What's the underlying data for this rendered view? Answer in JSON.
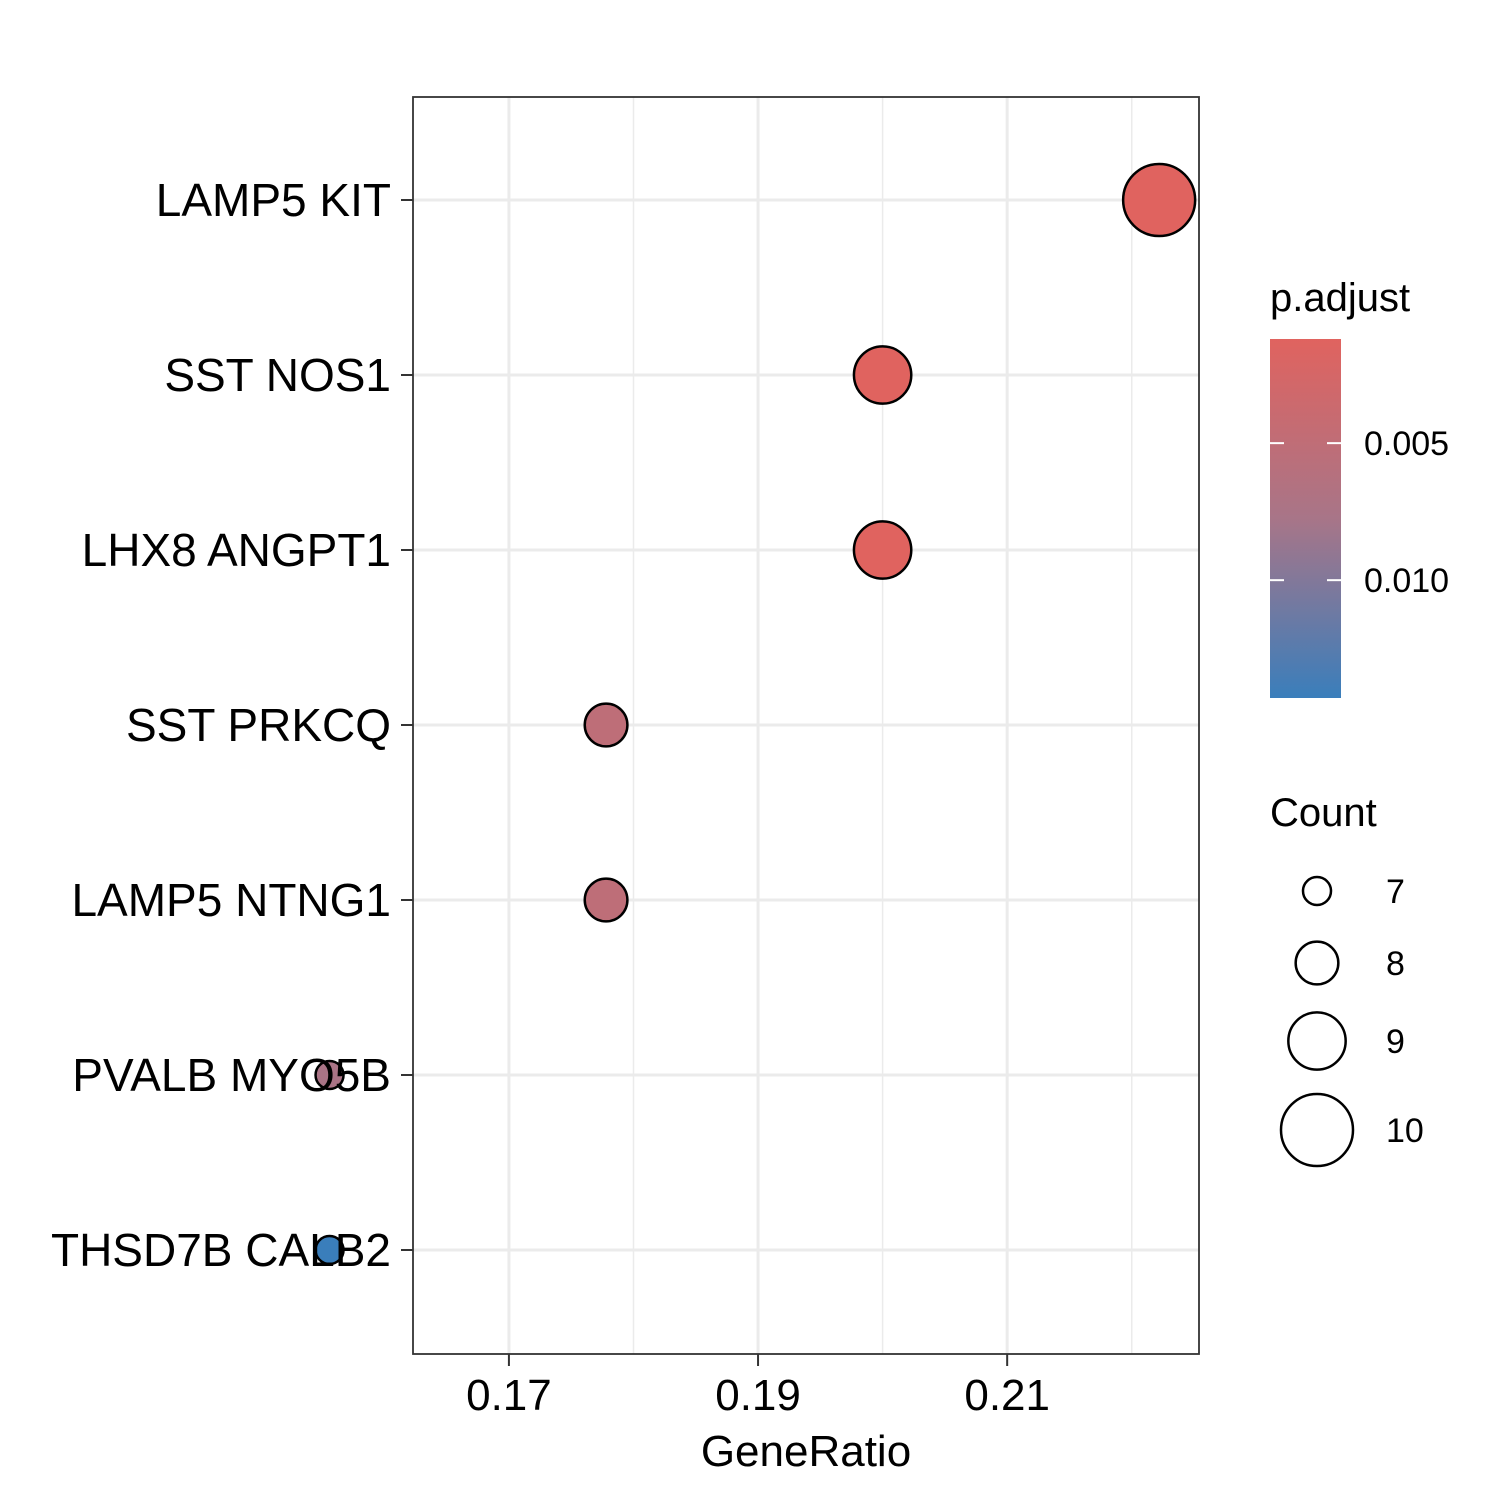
{
  "chart_data": {
    "type": "scatter",
    "xlabel": "GeneRatio",
    "x_ticks": [
      0.17,
      0.19,
      0.21
    ],
    "x_tick_labels": [
      "0.17",
      "0.19",
      "0.21"
    ],
    "xlim": [
      0.1623,
      0.2254
    ],
    "categories": [
      "THSD7B CALB2",
      "PVALB MYO5B",
      "LAMP5 NTNG1",
      "SST PRKCQ",
      "LHX8 ANGPT1",
      "SST NOS1",
      "LAMP5 KIT"
    ],
    "points": [
      {
        "label": "LAMP5 KIT",
        "gene_ratio": 0.2222,
        "count": 10,
        "p_adjust": 0.0012
      },
      {
        "label": "SST NOS1",
        "gene_ratio": 0.2,
        "count": 9,
        "p_adjust": 0.0012
      },
      {
        "label": "LHX8 ANGPT1",
        "gene_ratio": 0.2,
        "count": 9,
        "p_adjust": 0.0012
      },
      {
        "label": "SST PRKCQ",
        "gene_ratio": 0.1778,
        "count": 8,
        "p_adjust": 0.0052
      },
      {
        "label": "LAMP5 NTNG1",
        "gene_ratio": 0.1778,
        "count": 8,
        "p_adjust": 0.0052
      },
      {
        "label": "PVALB MYO5B",
        "gene_ratio": 0.1556,
        "count": 7,
        "p_adjust": 0.0075
      },
      {
        "label": "THSD7B CALB2",
        "gene_ratio": 0.1556,
        "count": 7,
        "p_adjust": 0.0143
      }
    ],
    "color_legend": {
      "title": "p.adjust",
      "low_color": "#E0635F",
      "mid_color": "#A87588",
      "high_color": "#3A7EBB",
      "range": [
        0.0012,
        0.0143
      ],
      "ticks": [
        0.005,
        0.01
      ],
      "tick_labels": [
        "0.005",
        "0.010"
      ]
    },
    "size_legend": {
      "title": "Count",
      "values": [
        7,
        8,
        9,
        10
      ],
      "labels": [
        "7",
        "8",
        "9",
        "10"
      ]
    },
    "grid": true,
    "legend_position": "right"
  }
}
